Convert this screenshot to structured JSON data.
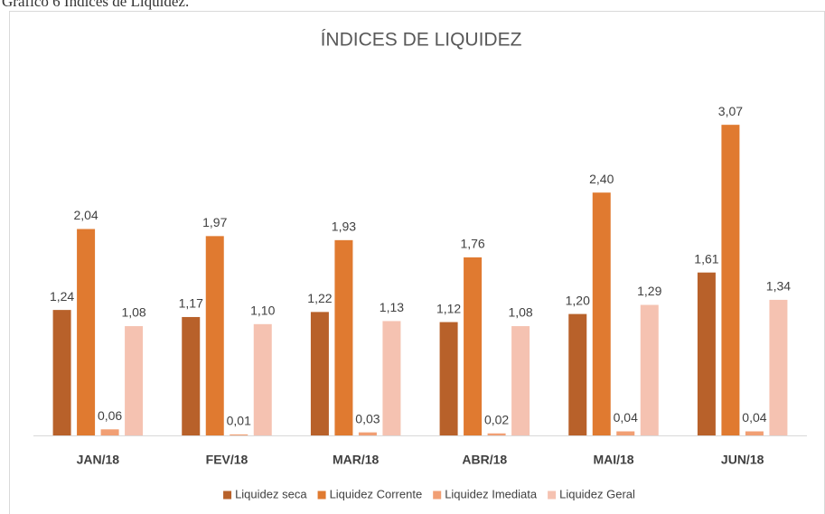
{
  "chart_data": {
    "type": "bar",
    "caption": "Gráfico 6 Índices de Liquidez.",
    "title": "ÍNDICES DE LIQUIDEZ",
    "categories": [
      "JAN/18",
      "FEV/18",
      "MAR/18",
      "ABR/18",
      "MAI/18",
      "JUN/18"
    ],
    "series": [
      {
        "name": "Liquidez seca",
        "color": "#b8612a",
        "values": [
          1.24,
          1.17,
          1.22,
          1.12,
          1.2,
          1.61
        ],
        "value_labels": [
          "1,24",
          "1,17",
          "1,22",
          "1,12",
          "1,20",
          "1,61"
        ]
      },
      {
        "name": "Liquidez Corrente",
        "color": "#e07a30",
        "values": [
          2.04,
          1.97,
          1.93,
          1.76,
          2.4,
          3.07
        ],
        "value_labels": [
          "2,04",
          "1,97",
          "1,93",
          "1,76",
          "2,40",
          "3,07"
        ]
      },
      {
        "name": "Liquidez Imediata",
        "color": "#f19f74",
        "values": [
          0.06,
          0.01,
          0.03,
          0.02,
          0.04,
          0.04
        ],
        "value_labels": [
          "0,06",
          "0,01",
          "0,03",
          "0,02",
          "0,04",
          "0,04"
        ]
      },
      {
        "name": "Liquidez Geral",
        "color": "#f5c2b1",
        "values": [
          1.08,
          1.1,
          1.13,
          1.08,
          1.29,
          1.34
        ],
        "value_labels": [
          "1,08",
          "1,10",
          "1,13",
          "1,08",
          "1,29",
          "1,34"
        ]
      }
    ],
    "legend": "bottom"
  }
}
